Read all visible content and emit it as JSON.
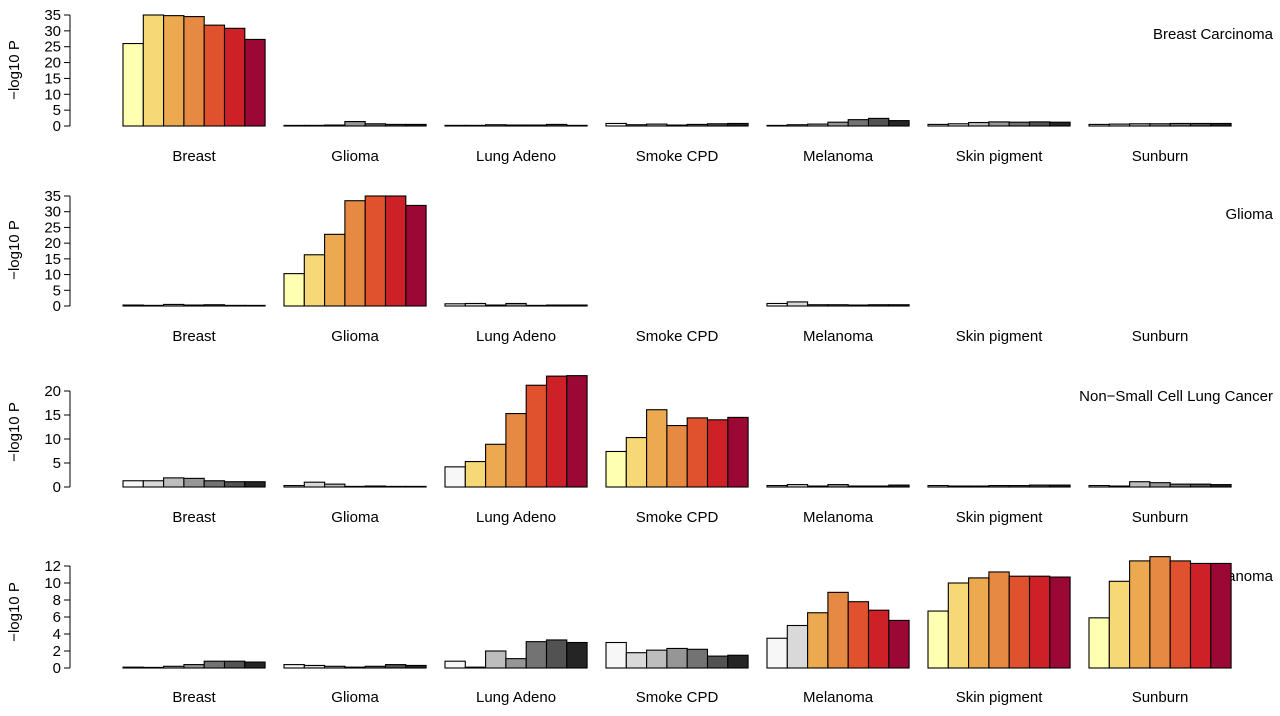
{
  "colors": {
    "warm": [
      "#FFFFB2",
      "#F6D876",
      "#ECA94F",
      "#E68A43",
      "#E0522E",
      "#CE2027",
      "#9C0835"
    ],
    "grey": [
      "#F7F7F7",
      "#D9D9D9",
      "#BDBDBD",
      "#969696",
      "#737373",
      "#525252",
      "#252525"
    ],
    "stroke": "#000000"
  },
  "chart_data": [
    {
      "type": "bar",
      "title": "Breast Carcinoma",
      "ylabel": "−log10 P",
      "ylim": [
        0,
        35
      ],
      "yticks": [
        0,
        5,
        10,
        15,
        20,
        25,
        30,
        35
      ],
      "categories": [
        "Breast",
        "Glioma",
        "Lung Adeno",
        "Smoke CPD",
        "Melanoma",
        "Skin pigment",
        "Sunburn"
      ],
      "highlight": [
        "Breast"
      ],
      "values": [
        [
          26.0,
          35.0,
          34.8,
          34.5,
          31.8,
          30.8,
          27.3
        ],
        [
          0.1,
          0.2,
          0.3,
          1.4,
          0.7,
          0.5,
          0.5
        ],
        [
          0.2,
          0.2,
          0.4,
          0.3,
          0.3,
          0.5,
          0.2
        ],
        [
          0.8,
          0.4,
          0.6,
          0.3,
          0.5,
          0.7,
          0.8
        ],
        [
          0.1,
          0.4,
          0.6,
          1.2,
          2.0,
          2.4,
          1.7
        ],
        [
          0.5,
          0.7,
          1.1,
          1.3,
          1.2,
          1.3,
          1.2
        ],
        [
          0.5,
          0.6,
          0.7,
          0.7,
          0.8,
          0.8,
          0.8
        ]
      ]
    },
    {
      "type": "bar",
      "title": "Glioma",
      "ylabel": "−log10 P",
      "ylim": [
        0,
        35
      ],
      "yticks": [
        0,
        5,
        10,
        15,
        20,
        25,
        30,
        35
      ],
      "categories": [
        "Breast",
        "Glioma",
        "Lung Adeno",
        "Smoke CPD",
        "Melanoma",
        "Skin pigment",
        "Sunburn"
      ],
      "highlight": [
        "Glioma"
      ],
      "values": [
        [
          0.3,
          0.2,
          0.5,
          0.3,
          0.4,
          0.2,
          0.1
        ],
        [
          10.3,
          16.3,
          22.8,
          33.5,
          35.0,
          35.0,
          32.0
        ],
        [
          0.7,
          0.8,
          0.3,
          0.8,
          0.2,
          0.3,
          0.3
        ],
        [],
        [
          0.8,
          1.3,
          0.4,
          0.4,
          0.3,
          0.4,
          0.4
        ],
        [],
        []
      ]
    },
    {
      "type": "bar",
      "title": "Non−Small Cell Lung Cancer",
      "ylabel": "−log10 P",
      "ylim": [
        0,
        20
      ],
      "yticks": [
        0,
        5,
        10,
        15,
        20
      ],
      "categories": [
        "Breast",
        "Glioma",
        "Lung Adeno",
        "Smoke CPD",
        "Melanoma",
        "Skin pigment",
        "Sunburn"
      ],
      "highlight": [
        "Lung Adeno",
        "Smoke CPD"
      ],
      "values": [
        [
          1.3,
          1.3,
          1.9,
          1.8,
          1.3,
          1.1,
          1.1
        ],
        [
          0.3,
          1.0,
          0.6,
          0.1,
          0.2,
          0.1,
          0.1
        ],
        [
          4.2,
          5.3,
          8.9,
          15.3,
          21.2,
          23.1,
          23.2
        ],
        [
          7.4,
          10.3,
          16.1,
          12.8,
          14.4,
          14.0,
          14.5
        ],
        [
          0.3,
          0.5,
          0.2,
          0.5,
          0.2,
          0.2,
          0.4
        ],
        [
          0.3,
          0.2,
          0.2,
          0.3,
          0.3,
          0.4,
          0.4
        ],
        [
          0.3,
          0.2,
          1.1,
          0.9,
          0.6,
          0.6,
          0.5
        ]
      ]
    },
    {
      "type": "bar",
      "title": "Melanoma",
      "ylabel": "−log10 P",
      "ylim": [
        0,
        12
      ],
      "yticks": [
        0,
        2,
        4,
        6,
        8,
        10,
        12
      ],
      "categories": [
        "Breast",
        "Glioma",
        "Lung Adeno",
        "Smoke CPD",
        "Melanoma",
        "Skin pigment",
        "Sunburn"
      ],
      "highlight": [
        "Melanoma",
        "Skin pigment",
        "Sunburn"
      ],
      "melanoma_grey_first": 2,
      "values": [
        [
          0.1,
          0.05,
          0.2,
          0.4,
          0.8,
          0.8,
          0.7
        ],
        [
          0.4,
          0.3,
          0.2,
          0.1,
          0.2,
          0.4,
          0.3
        ],
        [
          0.8,
          0.1,
          2.0,
          1.1,
          3.1,
          3.3,
          3.0
        ],
        [
          3.0,
          1.8,
          2.1,
          2.3,
          2.2,
          1.4,
          1.5
        ],
        [
          3.5,
          5.0,
          6.5,
          8.9,
          7.8,
          6.8,
          5.6
        ],
        [
          6.7,
          10.0,
          10.6,
          11.3,
          10.8,
          10.8,
          10.7
        ],
        [
          5.9,
          10.2,
          12.6,
          13.1,
          12.6,
          12.3,
          12.3
        ]
      ]
    }
  ]
}
